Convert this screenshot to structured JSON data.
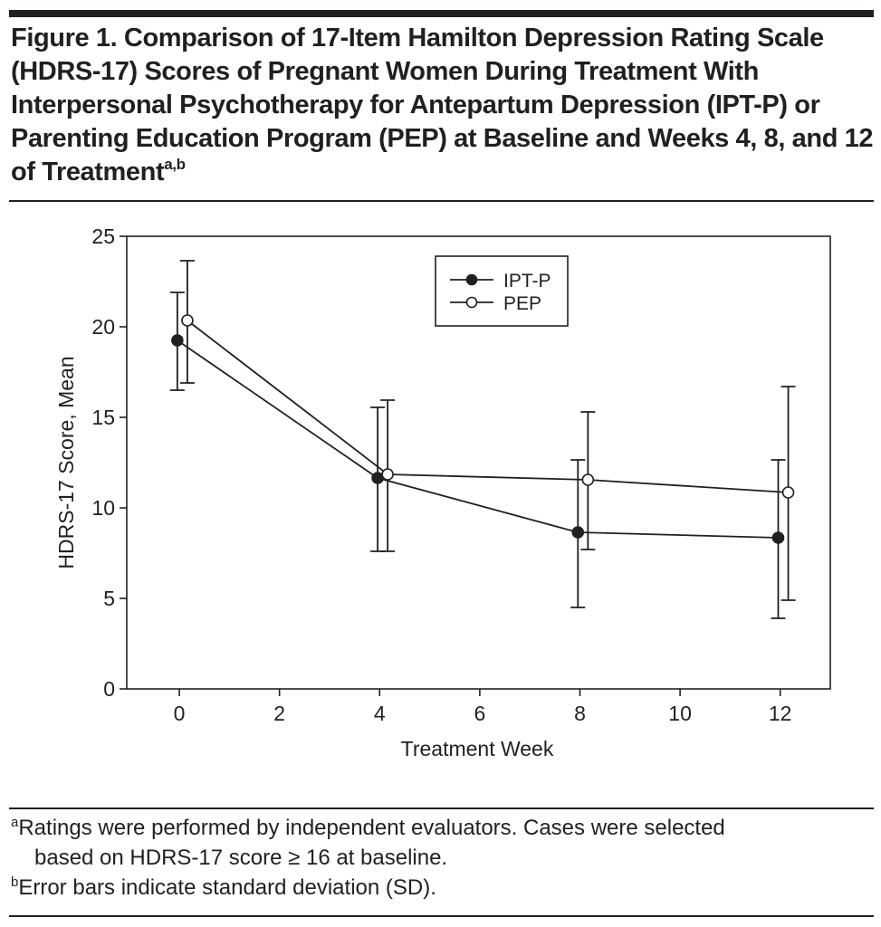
{
  "figure": {
    "title": "Figure 1. Comparison of 17-Item Hamilton Depression Rating Scale (HDRS-17) Scores of Pregnant Women During Treatment With Interpersonal Psychotherapy for Antepartum Depression (IPT-P) or Parenting Education Program (PEP) at Baseline and Weeks 4, 8, and 12 of Treatment",
    "title_superscript": "a,b",
    "footnotes": [
      {
        "marker": "a",
        "text": "Ratings were performed by independent evaluators. Cases were selected",
        "continuation": "based on HDRS-17 score ≥ 16 at baseline."
      },
      {
        "marker": "b",
        "text": "Error bars indicate standard deviation (SD)."
      }
    ]
  },
  "chart_data": {
    "type": "line",
    "title": "",
    "xlabel": "Treatment Week",
    "ylabel": "HDRS-17 Score, Mean",
    "x": [
      0,
      4,
      8,
      12
    ],
    "xlim": [
      -1.05,
      13
    ],
    "ylim": [
      0,
      25
    ],
    "xticks": [
      0,
      2,
      4,
      6,
      8,
      10,
      12
    ],
    "yticks": [
      0,
      5,
      10,
      15,
      20,
      25
    ],
    "grid": false,
    "legend_position": "top-center",
    "series": [
      {
        "name": "IPT-P",
        "marker": "filled-circle",
        "values": [
          19.25,
          11.65,
          8.65,
          8.35
        ],
        "error_upper": [
          21.9,
          15.55,
          12.65,
          12.65
        ],
        "error_lower": [
          16.5,
          7.6,
          4.5,
          3.9
        ]
      },
      {
        "name": "PEP",
        "marker": "open-circle",
        "values": [
          20.35,
          11.85,
          11.55,
          10.85
        ],
        "error_upper": [
          23.65,
          15.95,
          15.3,
          16.7
        ],
        "error_lower": [
          16.9,
          7.6,
          7.7,
          4.9
        ]
      }
    ]
  }
}
